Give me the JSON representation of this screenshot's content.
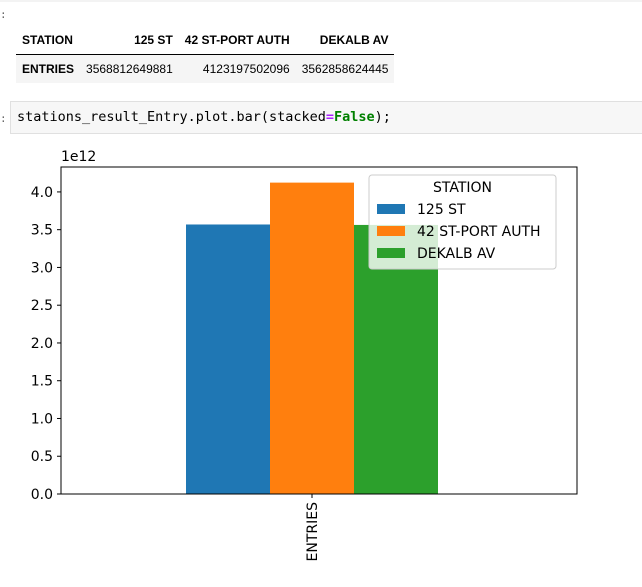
{
  "prompt_mark": ":",
  "dataframe": {
    "index_name": "STATION",
    "columns": [
      "125 ST",
      "42 ST-PORT AUTH",
      "DEKALB AV"
    ],
    "row_label": "ENTRIES",
    "values": [
      "3568812649881",
      "4123197502096",
      "3562858624445"
    ]
  },
  "code": {
    "prefix": "stations_result_Entry.plot.bar(stacked",
    "eq": "=",
    "arg": "False",
    "suffix": ");"
  },
  "chart_data": {
    "type": "bar",
    "categories": [
      "ENTRIES"
    ],
    "series": [
      {
        "name": "125 ST",
        "values": [
          3568812649881
        ],
        "color": "#1f77b4"
      },
      {
        "name": "42 ST-PORT AUTH",
        "values": [
          4123197502096
        ],
        "color": "#ff7f0e"
      },
      {
        "name": "DEKALB AV",
        "values": [
          3562858624445
        ],
        "color": "#2ca02c"
      }
    ],
    "multiplier_label": "1e12",
    "yticks": [
      "0.0",
      "0.5",
      "1.0",
      "1.5",
      "2.0",
      "2.5",
      "3.0",
      "3.5",
      "4.0"
    ],
    "ylim": [
      0,
      4330000000000.0
    ],
    "legend_title": "STATION",
    "legend_location": "top-right",
    "grid": false
  }
}
